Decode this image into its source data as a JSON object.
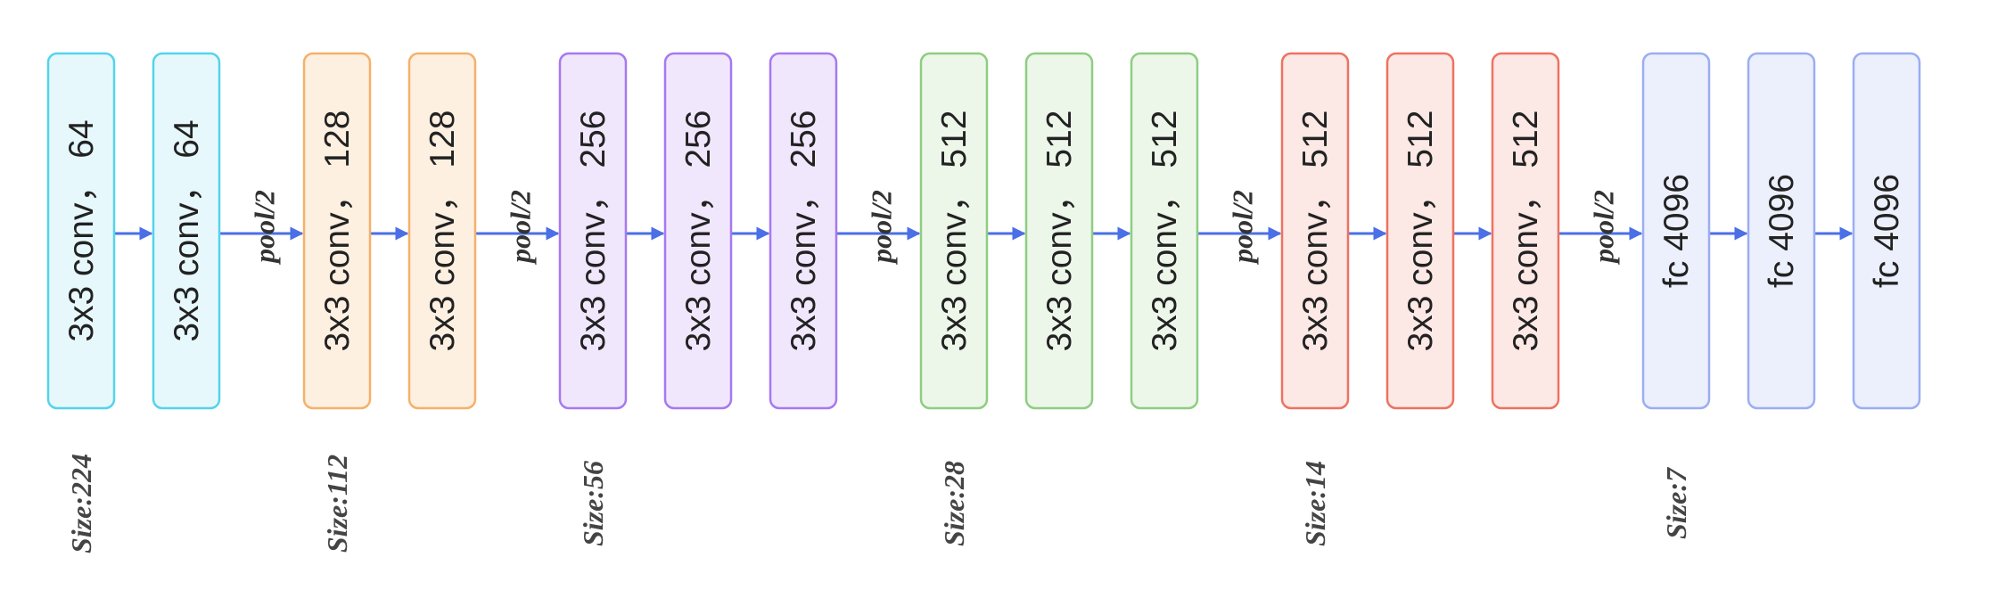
{
  "stages": [
    {
      "size_label": "Size:224",
      "border": "#55d3ec",
      "fill": "#e7f8fc",
      "blocks": [
        "3x3 conv， 64",
        "3x3 conv， 64"
      ]
    },
    {
      "size_label": "Size:112",
      "border": "#f5b16a",
      "fill": "#fdf0e1",
      "blocks": [
        "3x3 conv， 128",
        "3x3 conv， 128"
      ]
    },
    {
      "size_label": "Size:56",
      "border": "#a779f0",
      "fill": "#f0e7fc",
      "blocks": [
        "3x3 conv， 256",
        "3x3 conv， 256",
        "3x3 conv， 256"
      ]
    },
    {
      "size_label": "Size:28",
      "border": "#8fcd82",
      "fill": "#ecf7ea",
      "blocks": [
        "3x3 conv， 512",
        "3x3 conv， 512",
        "3x3 conv， 512"
      ]
    },
    {
      "size_label": "Size:14",
      "border": "#ee7261",
      "fill": "#fce8e5",
      "blocks": [
        "3x3 conv， 512",
        "3x3 conv， 512",
        "3x3 conv， 512"
      ]
    },
    {
      "size_label": "Size:7",
      "border": "#9aaef2",
      "fill": "#eceffc",
      "blocks": [
        "fc 4096",
        "fc 4096",
        "fc 4096"
      ]
    }
  ],
  "pool_label": "pool/2",
  "arrow_color": "#4a6fe6"
}
